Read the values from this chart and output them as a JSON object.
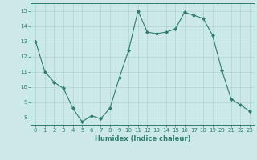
{
  "x": [
    0,
    1,
    2,
    3,
    4,
    5,
    6,
    7,
    8,
    9,
    10,
    11,
    12,
    13,
    14,
    15,
    16,
    17,
    18,
    19,
    20,
    21,
    22,
    23
  ],
  "y": [
    13.0,
    11.0,
    10.3,
    9.9,
    8.6,
    7.7,
    8.1,
    7.9,
    8.6,
    10.6,
    12.4,
    15.0,
    13.6,
    13.5,
    13.6,
    13.8,
    14.9,
    14.7,
    14.5,
    13.4,
    11.1,
    9.2,
    8.8,
    8.4
  ],
  "line_color": "#2e7d6e",
  "marker": "D",
  "marker_size": 2.0,
  "bg_color": "#cce9e7",
  "grid_color": "#aed4d1",
  "xlabel": "Humidex (Indice chaleur)",
  "xlim": [
    -0.5,
    23.5
  ],
  "ylim": [
    7.5,
    15.5
  ],
  "yticks": [
    8,
    9,
    10,
    11,
    12,
    13,
    14,
    15
  ],
  "xticks": [
    0,
    1,
    2,
    3,
    4,
    5,
    6,
    7,
    8,
    9,
    10,
    11,
    12,
    13,
    14,
    15,
    16,
    17,
    18,
    19,
    20,
    21,
    22,
    23
  ],
  "axis_color": "#2e7d6e",
  "tick_color": "#2e7d6e",
  "label_color": "#2e7d6e",
  "tick_fontsize": 5.0,
  "xlabel_fontsize": 6.0
}
